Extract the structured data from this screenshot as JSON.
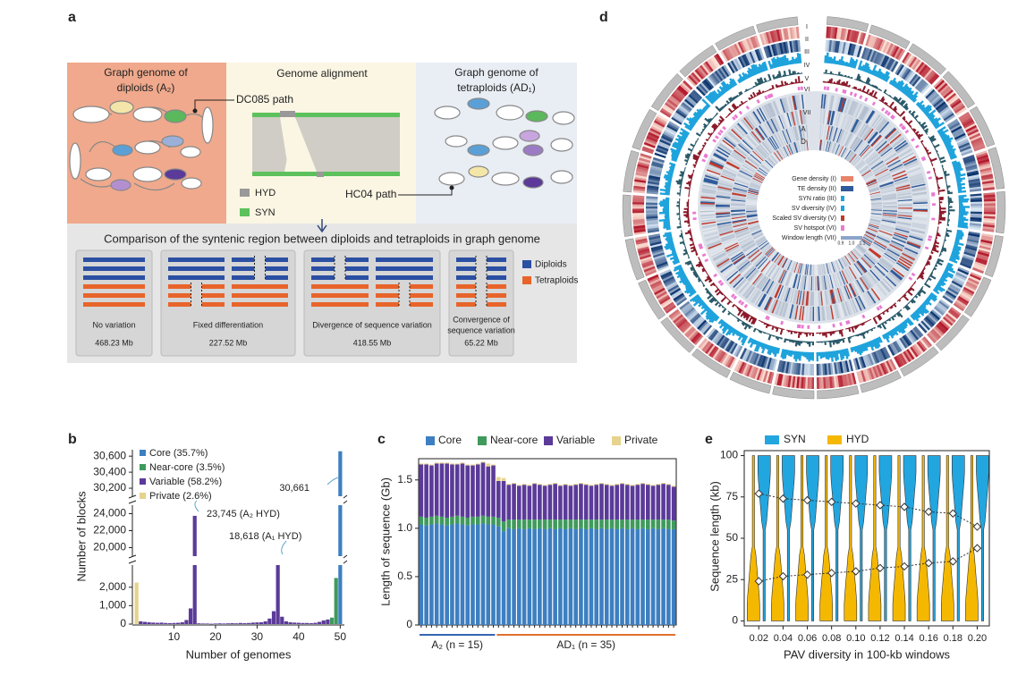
{
  "panel_labels": [
    "a",
    "b",
    "c",
    "d",
    "e"
  ],
  "diagram": {
    "diploid_title": [
      "Graph genome of",
      "diploids (A₂)"
    ],
    "alignment_title": "Genome alignment",
    "tetraploid_title": [
      "Graph genome of",
      "tetraploids (AD₁)"
    ],
    "dc085": "DC085 path",
    "hc04": "HC04 path",
    "legend": [
      "HYD",
      "SYN"
    ],
    "comparison_title": "Comparison of the syntenic region between diploids and tetraploids in graph genome",
    "cases": [
      {
        "name": [
          "No variation"
        ],
        "value": "468.23 Mb"
      },
      {
        "name": [
          "Fixed differentiation"
        ],
        "value": "227.52 Mb"
      },
      {
        "name": [
          "Divergence of sequence variation"
        ],
        "value": "418.55 Mb"
      },
      {
        "name": [
          "Convergence of",
          "sequence variation"
        ],
        "value": "65.22 Mb"
      }
    ],
    "case_legend": [
      "Diploids",
      "Tetraploids"
    ]
  },
  "circos": {
    "tracks": [
      "I",
      "II",
      "III",
      "IV",
      "V",
      "VI",
      "VII"
    ],
    "subgenomes": [
      "A",
      "D"
    ],
    "legend": [
      "Gene density (I)",
      "TE density (II)",
      "SYN ratio (III)",
      "SV diversity (IV)",
      "Scaled SV diversity (V)",
      "SV hotspot (VI)",
      "Window length (VII)"
    ],
    "window_scale": [
      "0.9",
      "1.0",
      "1.1"
    ]
  },
  "chart_data": [
    {
      "type": "bar",
      "x_label": "Number of genomes",
      "y_label": "Number of blocks",
      "xlim": [
        0,
        51
      ],
      "xticks": [
        10,
        20,
        30,
        40,
        50
      ],
      "y_segments": [
        [
          0,
          3200
        ],
        [
          19000,
          25000
        ],
        [
          30100,
          30680
        ]
      ],
      "yticks": [
        0,
        {
          "value": 1000,
          "label": "1,000"
        },
        {
          "value": 2000,
          "label": "2,000"
        },
        {
          "value": 20000,
          "label": "20,000"
        },
        {
          "value": 22000,
          "label": "22,000"
        },
        {
          "value": 24000,
          "label": "24,000"
        },
        {
          "value": 30200,
          "label": "30,200"
        },
        {
          "value": 30400,
          "label": "30,400"
        },
        {
          "value": 30600,
          "label": "30,600"
        }
      ],
      "series": [
        {
          "name": "Core (35.7%)",
          "color": "#3d7fc1",
          "x": [
            50
          ],
          "values": [
            30661
          ]
        },
        {
          "name": "Near-core (3.5%)",
          "color": "#3f9a5c",
          "x": [
            48,
            49
          ],
          "values": [
            350,
            2500
          ]
        },
        {
          "name": "Variable (58.2%)",
          "color": "#5b3a99",
          "x": [
            2,
            3,
            4,
            5,
            6,
            7,
            8,
            9,
            10,
            11,
            12,
            13,
            14,
            15,
            16,
            17,
            18,
            19,
            20,
            21,
            22,
            23,
            24,
            25,
            26,
            27,
            28,
            29,
            30,
            31,
            32,
            33,
            34,
            35,
            36,
            37,
            38,
            39,
            40,
            41,
            42,
            43,
            44,
            45,
            46,
            47
          ],
          "values": [
            150,
            120,
            100,
            80,
            70,
            80,
            60,
            50,
            60,
            70,
            100,
            220,
            850,
            23745,
            40,
            30,
            30,
            20,
            30,
            40,
            30,
            40,
            50,
            40,
            60,
            50,
            60,
            80,
            90,
            100,
            150,
            300,
            700,
            18618,
            400,
            150,
            100,
            80,
            70,
            60,
            60,
            50,
            70,
            120,
            200,
            250
          ]
        },
        {
          "name": "Private (2.6%)",
          "color": "#e6d38c",
          "x": [
            1
          ],
          "values": [
            2250
          ]
        }
      ],
      "annotations": [
        "30,661",
        "23,745 (A₂ HYD)",
        "18,618 (A₁ HYD)"
      ]
    },
    {
      "type": "stacked-bar",
      "y_label": "Length of sequence (Gb)",
      "ylim": [
        0,
        1.72
      ],
      "yticks": [
        0,
        0.5,
        {
          "value": 1,
          "label": "1.0"
        },
        1.5
      ],
      "categories": [
        null,
        null,
        null,
        null,
        null,
        null,
        null,
        null,
        null,
        null,
        null,
        null,
        null,
        null,
        null,
        null,
        null,
        null,
        null,
        null,
        null,
        null,
        null,
        null,
        null,
        null,
        null,
        null,
        null,
        null,
        null,
        null,
        null,
        null,
        null,
        null,
        null,
        null,
        null,
        null,
        null,
        null,
        null,
        null,
        null,
        null,
        null,
        null,
        null,
        null
      ],
      "groups": [
        {
          "label": "A₂ (n = 15)",
          "n": 15,
          "color": "#3566b0"
        },
        {
          "label": "AD₁ (n = 35)",
          "n": 35,
          "color": "#e0702e"
        }
      ],
      "series": [
        {
          "name": "Core",
          "color": "#3d7fc1",
          "values": [
            1.04,
            1.03,
            1.04,
            1.05,
            1.04,
            1.03,
            1.04,
            1.05,
            1.04,
            1.03,
            1.04,
            1.04,
            1.05,
            1.04,
            1.04,
            1.02,
            0.97,
            1.0,
            0.99,
            1.0,
            0.99,
            1.0,
            0.99,
            1.0,
            0.99,
            1.0,
            0.99,
            1.0,
            0.99,
            1.0,
            0.99,
            1.0,
            0.99,
            1.0,
            0.99,
            1.0,
            0.99,
            1.0,
            0.99,
            1.0,
            0.99,
            1.0,
            0.99,
            1.0,
            0.99,
            1.0,
            0.99,
            1.0,
            0.99,
            0.99
          ]
        },
        {
          "name": "Near-core",
          "color": "#3f9a5c",
          "values": [
            0.08,
            0.08,
            0.08,
            0.08,
            0.08,
            0.08,
            0.08,
            0.08,
            0.08,
            0.08,
            0.08,
            0.08,
            0.08,
            0.08,
            0.08,
            0.09,
            0.1,
            0.09,
            0.1,
            0.09,
            0.1,
            0.09,
            0.1,
            0.09,
            0.1,
            0.09,
            0.1,
            0.09,
            0.1,
            0.09,
            0.1,
            0.09,
            0.1,
            0.09,
            0.1,
            0.09,
            0.1,
            0.09,
            0.1,
            0.09,
            0.1,
            0.09,
            0.1,
            0.09,
            0.1,
            0.09,
            0.1,
            0.09,
            0.1,
            0.09
          ]
        },
        {
          "name": "Variable",
          "color": "#5b3a99",
          "values": [
            0.54,
            0.55,
            0.53,
            0.54,
            0.55,
            0.56,
            0.54,
            0.53,
            0.55,
            0.54,
            0.53,
            0.54,
            0.55,
            0.52,
            0.53,
            0.38,
            0.42,
            0.36,
            0.37,
            0.35,
            0.36,
            0.35,
            0.37,
            0.36,
            0.35,
            0.36,
            0.37,
            0.35,
            0.36,
            0.35,
            0.36,
            0.37,
            0.36,
            0.35,
            0.36,
            0.37,
            0.36,
            0.35,
            0.36,
            0.37,
            0.36,
            0.35,
            0.36,
            0.37,
            0.36,
            0.35,
            0.36,
            0.37,
            0.36,
            0.35
          ]
        },
        {
          "name": "Private",
          "color": "#e6d38c",
          "values": [
            0.01,
            0.01,
            0.01,
            0.01,
            0.01,
            0.01,
            0.01,
            0.01,
            0.01,
            0.01,
            0.01,
            0.01,
            0.01,
            0.03,
            0.01,
            0.04,
            0.03,
            0.01,
            0.01,
            0.01,
            0.01,
            0.01,
            0.01,
            0.01,
            0.01,
            0.01,
            0.01,
            0.01,
            0.01,
            0.01,
            0.01,
            0.01,
            0.01,
            0.01,
            0.01,
            0.01,
            0.01,
            0.01,
            0.01,
            0.01,
            0.01,
            0.01,
            0.01,
            0.01,
            0.01,
            0.01,
            0.01,
            0.01,
            0.01,
            0.01
          ]
        }
      ]
    },
    {
      "type": "violin",
      "x_label": "PAV diversity in 100-kb windows",
      "y_label": "Sequence length (kb)",
      "xlim": [
        0.008,
        0.21
      ],
      "ylim": [
        -3,
        103
      ],
      "xticks": [
        0.02,
        0.04,
        0.06,
        0.08,
        {
          "value": 0.1,
          "label": "0.10"
        },
        0.12,
        0.14,
        0.16,
        0.18,
        {
          "value": 0.2,
          "label": "0.20"
        }
      ],
      "yticks": [
        0,
        25,
        50,
        75,
        100
      ],
      "x": [
        0.02,
        0.04,
        0.06,
        0.08,
        0.1,
        0.12,
        0.14,
        0.16,
        0.18,
        0.2
      ],
      "series": [
        {
          "name": "SYN",
          "color": "#22a6e0",
          "values": [
            77,
            74,
            73,
            72,
            71,
            70,
            69,
            66,
            65,
            57
          ]
        },
        {
          "name": "HYD",
          "color": "#f5b800",
          "values": [
            24,
            27,
            28,
            29,
            30,
            32,
            33,
            35,
            36,
            44
          ]
        }
      ]
    }
  ]
}
